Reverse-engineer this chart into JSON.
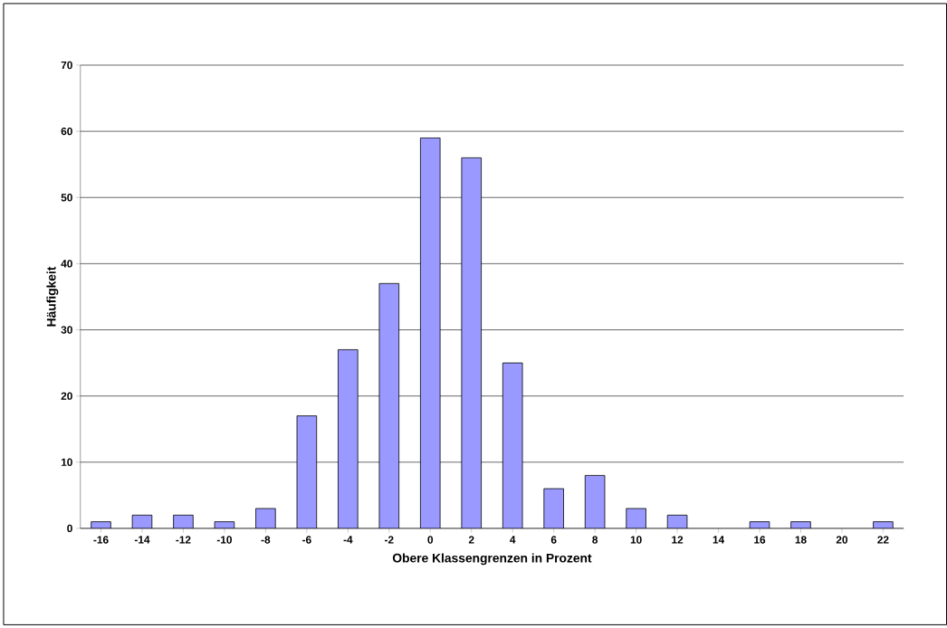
{
  "chart_data": {
    "type": "bar",
    "xlabel": "Obere Klassengrenzen in Prozent",
    "ylabel": "Häufigkeit",
    "categories": [
      "-16",
      "-14",
      "-12",
      "-10",
      "-8",
      "-6",
      "-4",
      "-2",
      "0",
      "2",
      "4",
      "6",
      "8",
      "10",
      "12",
      "14",
      "16",
      "18",
      "20",
      "22"
    ],
    "values": [
      1,
      2,
      2,
      1,
      3,
      17,
      27,
      37,
      59,
      56,
      25,
      6,
      8,
      3,
      2,
      0,
      1,
      1,
      0,
      1
    ],
    "color": "#9999ff",
    "ylim": [
      0,
      70
    ],
    "yticks": [
      0,
      10,
      20,
      30,
      40,
      50,
      60,
      70
    ],
    "grid": "y"
  }
}
